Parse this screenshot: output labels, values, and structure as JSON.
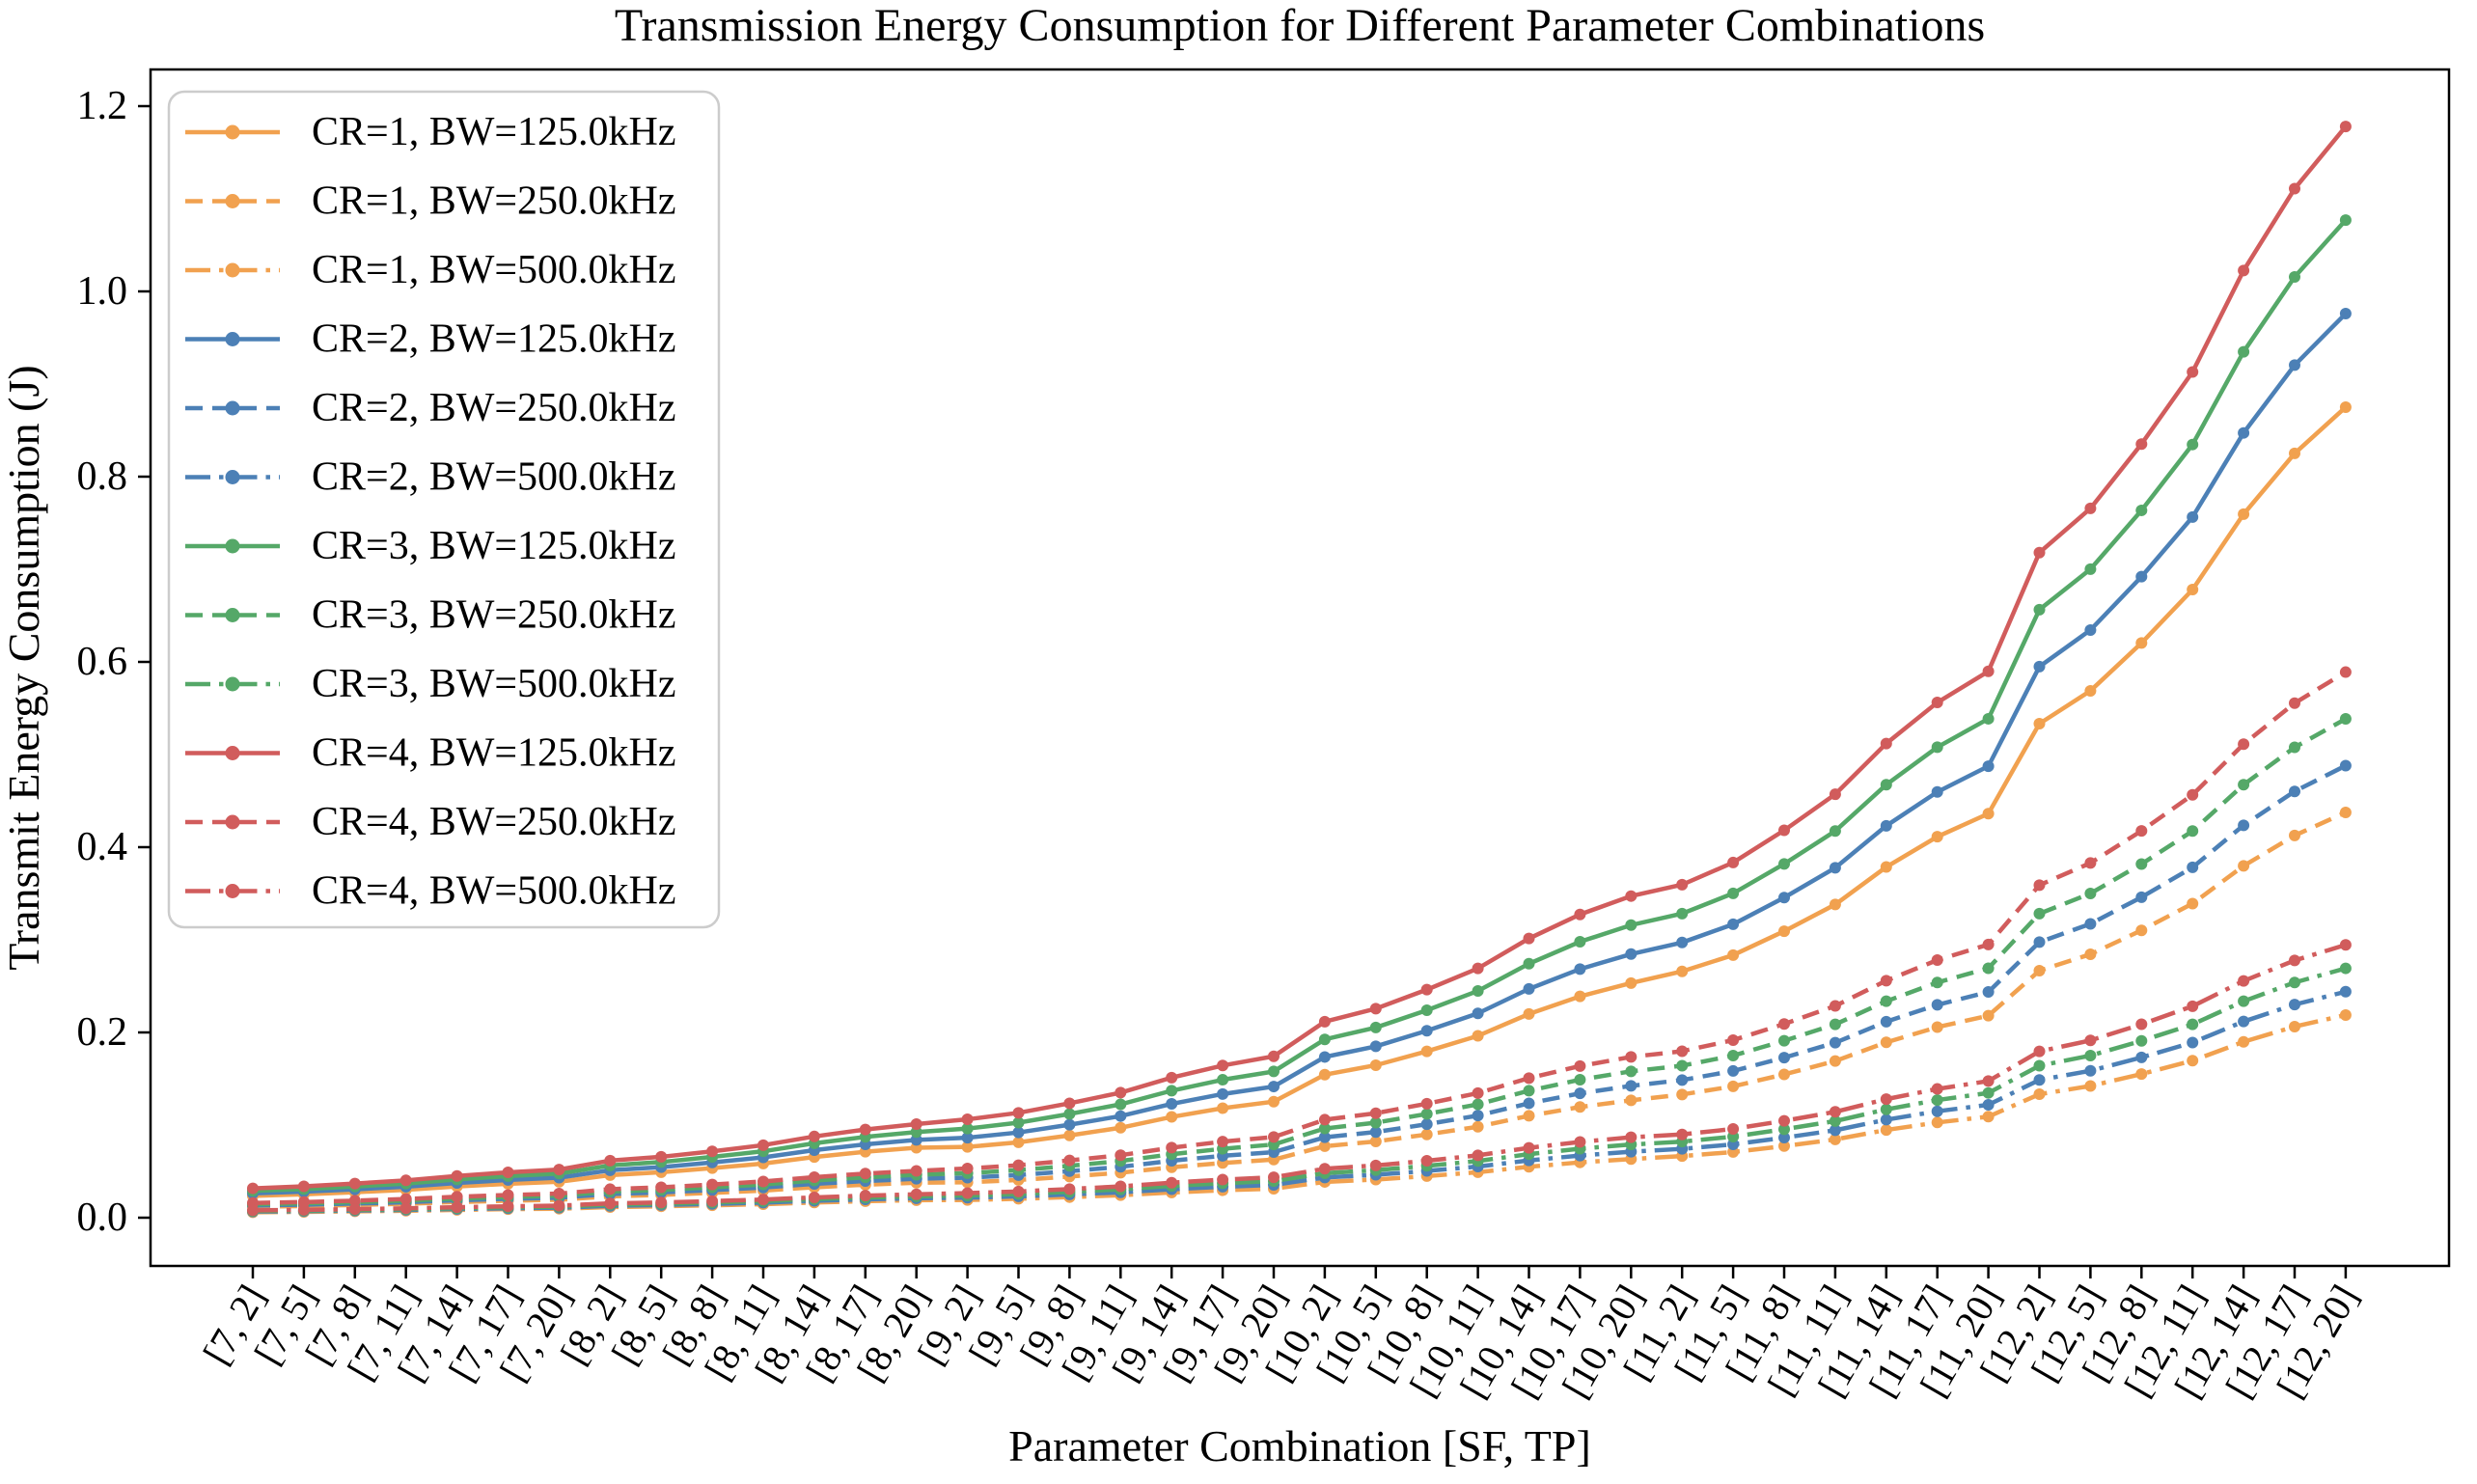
{
  "chart_data": {
    "type": "line",
    "title": "Transmission Energy Consumption for Different Parameter Combinations",
    "xlabel": "Parameter Combination [SF, TP]",
    "ylabel": "Transmit Energy Consumption (J)",
    "legend_position": "upper left",
    "grid": false,
    "ylim": [
      -0.05,
      1.24
    ],
    "y_ticks": [
      0.0,
      0.2,
      0.4,
      0.6,
      0.8,
      1.0,
      1.2
    ],
    "sf_values": [
      7,
      8,
      9,
      10,
      11,
      12
    ],
    "tp_values_dbm": [
      2,
      5,
      8,
      11,
      14,
      17,
      20
    ],
    "categories": [
      "[7, 2]",
      "[7, 5]",
      "[7, 8]",
      "[7, 11]",
      "[7, 14]",
      "[7, 17]",
      "[7, 20]",
      "[8, 2]",
      "[8, 5]",
      "[8, 8]",
      "[8, 11]",
      "[8, 14]",
      "[8, 17]",
      "[8, 20]",
      "[9, 2]",
      "[9, 5]",
      "[9, 8]",
      "[9, 11]",
      "[9, 14]",
      "[9, 17]",
      "[9, 20]",
      "[10, 2]",
      "[10, 5]",
      "[10, 8]",
      "[10, 11]",
      "[10, 14]",
      "[10, 17]",
      "[10, 20]",
      "[11, 2]",
      "[11, 5]",
      "[11, 8]",
      "[11, 11]",
      "[11, 14]",
      "[11, 17]",
      "[11, 20]",
      "[12, 2]",
      "[12, 5]",
      "[12, 8]",
      "[12, 11]",
      "[12, 14]",
      "[12, 17]",
      "[12, 20]"
    ],
    "series": [
      {
        "name": "CR=1, BW=125.0kHz",
        "color": "#F1A14F",
        "style": "solid",
        "marker": "circle",
        "values": [
          0.0236,
          0.0252,
          0.0275,
          0.0301,
          0.0337,
          0.0366,
          0.0388,
          0.046,
          0.0491,
          0.0535,
          0.0585,
          0.0655,
          0.0712,
          0.0755,
          0.0764,
          0.0814,
          0.0888,
          0.0971,
          0.1088,
          0.1182,
          0.1253,
          0.1544,
          0.1646,
          0.1796,
          0.1963,
          0.2199,
          0.2389,
          0.2533,
          0.2659,
          0.2835,
          0.3093,
          0.3381,
          0.3786,
          0.4113,
          0.4362,
          0.5333,
          0.5688,
          0.6204,
          0.6781,
          0.7595,
          0.8251,
          0.875
        ]
      },
      {
        "name": "CR=1, BW=250.0kHz",
        "color": "#F1A14F",
        "style": "dashed",
        "marker": "circle",
        "values": [
          0.0118,
          0.0126,
          0.0138,
          0.0151,
          0.0169,
          0.0183,
          0.0194,
          0.023,
          0.0246,
          0.0268,
          0.0293,
          0.0328,
          0.0356,
          0.0378,
          0.0382,
          0.0407,
          0.0444,
          0.0486,
          0.0544,
          0.0591,
          0.0627,
          0.0772,
          0.0823,
          0.0898,
          0.0982,
          0.11,
          0.1195,
          0.1267,
          0.133,
          0.1418,
          0.1547,
          0.1691,
          0.1893,
          0.2057,
          0.2181,
          0.2667,
          0.2844,
          0.3102,
          0.3391,
          0.3798,
          0.4126,
          0.4375
        ]
      },
      {
        "name": "CR=1, BW=500.0kHz",
        "color": "#F1A14F",
        "style": "dashdot",
        "marker": "circle",
        "values": [
          0.0059,
          0.0063,
          0.0069,
          0.0075,
          0.0084,
          0.0092,
          0.0097,
          0.0115,
          0.0123,
          0.0134,
          0.0146,
          0.0164,
          0.0178,
          0.0189,
          0.0191,
          0.0204,
          0.0222,
          0.0243,
          0.0272,
          0.0296,
          0.0313,
          0.0386,
          0.0412,
          0.0449,
          0.0491,
          0.055,
          0.0597,
          0.0633,
          0.0665,
          0.0709,
          0.0773,
          0.0845,
          0.0947,
          0.1028,
          0.1091,
          0.1333,
          0.1422,
          0.1551,
          0.1695,
          0.1899,
          0.2063,
          0.2188
        ]
      },
      {
        "name": "CR=2, BW=125.0kHz",
        "color": "#4C80B6",
        "style": "solid",
        "marker": "circle",
        "values": [
          0.0263,
          0.0281,
          0.0306,
          0.0335,
          0.0375,
          0.0407,
          0.0432,
          0.0512,
          0.0546,
          0.0596,
          0.0651,
          0.0729,
          0.0792,
          0.084,
          0.0863,
          0.092,
          0.1004,
          0.1097,
          0.1229,
          0.1335,
          0.1416,
          0.1735,
          0.185,
          0.2018,
          0.2206,
          0.247,
          0.2684,
          0.2846,
          0.2971,
          0.3168,
          0.3456,
          0.3777,
          0.4231,
          0.4596,
          0.4874,
          0.5949,
          0.6344,
          0.692,
          0.7564,
          0.8472,
          0.9204,
          0.976
        ]
      },
      {
        "name": "CR=2, BW=250.0kHz",
        "color": "#4C80B6",
        "style": "dashed",
        "marker": "circle",
        "values": [
          0.0132,
          0.014,
          0.0153,
          0.0167,
          0.0188,
          0.0204,
          0.0216,
          0.0256,
          0.0273,
          0.0298,
          0.0326,
          0.0365,
          0.0396,
          0.042,
          0.0432,
          0.046,
          0.0502,
          0.0549,
          0.0615,
          0.0668,
          0.0708,
          0.0868,
          0.0925,
          0.1009,
          0.1103,
          0.1235,
          0.1342,
          0.1423,
          0.1486,
          0.1584,
          0.1728,
          0.1889,
          0.2116,
          0.2298,
          0.2437,
          0.2975,
          0.3172,
          0.346,
          0.3782,
          0.4236,
          0.4602,
          0.488
        ]
      },
      {
        "name": "CR=2, BW=500.0kHz",
        "color": "#4C80B6",
        "style": "dashdot",
        "marker": "circle",
        "values": [
          0.0066,
          0.007,
          0.0077,
          0.0084,
          0.0094,
          0.0102,
          0.0108,
          0.0128,
          0.0137,
          0.0149,
          0.0163,
          0.0182,
          0.0198,
          0.021,
          0.0216,
          0.023,
          0.0251,
          0.0274,
          0.0307,
          0.0334,
          0.0354,
          0.0434,
          0.0463,
          0.0505,
          0.0552,
          0.0618,
          0.0671,
          0.0712,
          0.0743,
          0.0792,
          0.0864,
          0.0944,
          0.1058,
          0.1149,
          0.1219,
          0.1487,
          0.1586,
          0.173,
          0.1891,
          0.2118,
          0.2301,
          0.244
        ]
      },
      {
        "name": "CR=3, BW=125.0kHz",
        "color": "#55A868",
        "style": "solid",
        "marker": "circle",
        "values": [
          0.029,
          0.0309,
          0.0337,
          0.0369,
          0.0413,
          0.0449,
          0.0476,
          0.0564,
          0.0601,
          0.0656,
          0.0717,
          0.0803,
          0.0872,
          0.0925,
          0.0962,
          0.1026,
          0.112,
          0.1224,
          0.1371,
          0.1489,
          0.1579,
          0.1925,
          0.2053,
          0.224,
          0.2448,
          0.2742,
          0.2979,
          0.3159,
          0.3283,
          0.3501,
          0.3819,
          0.4174,
          0.4675,
          0.5079,
          0.5386,
          0.6564,
          0.7001,
          0.7636,
          0.8347,
          0.9348,
          1.0156,
          1.077
        ]
      },
      {
        "name": "CR=3, BW=250.0kHz",
        "color": "#55A868",
        "style": "dashed",
        "marker": "circle",
        "values": [
          0.0145,
          0.0155,
          0.0168,
          0.0184,
          0.0206,
          0.0224,
          0.0238,
          0.0282,
          0.03,
          0.0328,
          0.0359,
          0.0401,
          0.0436,
          0.0463,
          0.0481,
          0.0513,
          0.056,
          0.0612,
          0.0685,
          0.0744,
          0.079,
          0.0963,
          0.1026,
          0.112,
          0.1224,
          0.1371,
          0.149,
          0.158,
          0.1641,
          0.175,
          0.191,
          0.2087,
          0.2337,
          0.2539,
          0.2693,
          0.3282,
          0.35,
          0.3818,
          0.4174,
          0.4674,
          0.5078,
          0.5385
        ]
      },
      {
        "name": "CR=3, BW=500.0kHz",
        "color": "#55A868",
        "style": "dashdot",
        "marker": "circle",
        "values": [
          0.0072,
          0.0077,
          0.0084,
          0.0092,
          0.0103,
          0.0112,
          0.0119,
          0.0141,
          0.015,
          0.0164,
          0.0179,
          0.0201,
          0.0218,
          0.0231,
          0.024,
          0.0256,
          0.028,
          0.0306,
          0.0343,
          0.0372,
          0.0395,
          0.0481,
          0.0513,
          0.056,
          0.0612,
          0.0686,
          0.0745,
          0.079,
          0.0821,
          0.0875,
          0.0955,
          0.1043,
          0.1169,
          0.127,
          0.1347,
          0.1641,
          0.175,
          0.1909,
          0.2087,
          0.2337,
          0.2539,
          0.2692
        ]
      },
      {
        "name": "CR=4, BW=125.0kHz",
        "color": "#D15C5C",
        "style": "solid",
        "marker": "circle",
        "values": [
          0.0317,
          0.0338,
          0.0369,
          0.0403,
          0.0451,
          0.049,
          0.052,
          0.0616,
          0.0657,
          0.0716,
          0.0783,
          0.0877,
          0.0952,
          0.101,
          0.1062,
          0.1132,
          0.1235,
          0.135,
          0.1512,
          0.1643,
          0.1742,
          0.2116,
          0.2257,
          0.2462,
          0.2691,
          0.3014,
          0.3274,
          0.3472,
          0.3595,
          0.3834,
          0.4182,
          0.4571,
          0.5119,
          0.5562,
          0.5898,
          0.718,
          0.7657,
          0.8352,
          0.913,
          1.0225,
          1.1109,
          1.178
        ]
      },
      {
        "name": "CR=4, BW=250.0kHz",
        "color": "#D15C5C",
        "style": "dashed",
        "marker": "circle",
        "values": [
          0.0159,
          0.0169,
          0.0184,
          0.0202,
          0.0226,
          0.0245,
          0.026,
          0.0308,
          0.0328,
          0.0358,
          0.0391,
          0.0438,
          0.0476,
          0.0505,
          0.0531,
          0.0566,
          0.0618,
          0.0675,
          0.0756,
          0.0821,
          0.0871,
          0.1058,
          0.1128,
          0.1231,
          0.1345,
          0.1507,
          0.1637,
          0.1736,
          0.1797,
          0.1917,
          0.2091,
          0.2286,
          0.2559,
          0.2781,
          0.2949,
          0.359,
          0.3829,
          0.4176,
          0.4565,
          0.5112,
          0.5555,
          0.589
        ]
      },
      {
        "name": "CR=4, BW=500.0kHz",
        "color": "#D15C5C",
        "style": "dashdot",
        "marker": "circle",
        "values": [
          0.0079,
          0.0085,
          0.0092,
          0.0101,
          0.0113,
          0.0123,
          0.013,
          0.0154,
          0.0164,
          0.0179,
          0.0196,
          0.0219,
          0.0238,
          0.0253,
          0.0265,
          0.0283,
          0.0309,
          0.0338,
          0.0378,
          0.0411,
          0.0436,
          0.0529,
          0.0564,
          0.0615,
          0.0673,
          0.0754,
          0.0818,
          0.0868,
          0.0899,
          0.0958,
          0.1046,
          0.1143,
          0.128,
          0.139,
          0.1475,
          0.1795,
          0.1914,
          0.2088,
          0.2283,
          0.2556,
          0.2777,
          0.2945
        ]
      }
    ]
  }
}
